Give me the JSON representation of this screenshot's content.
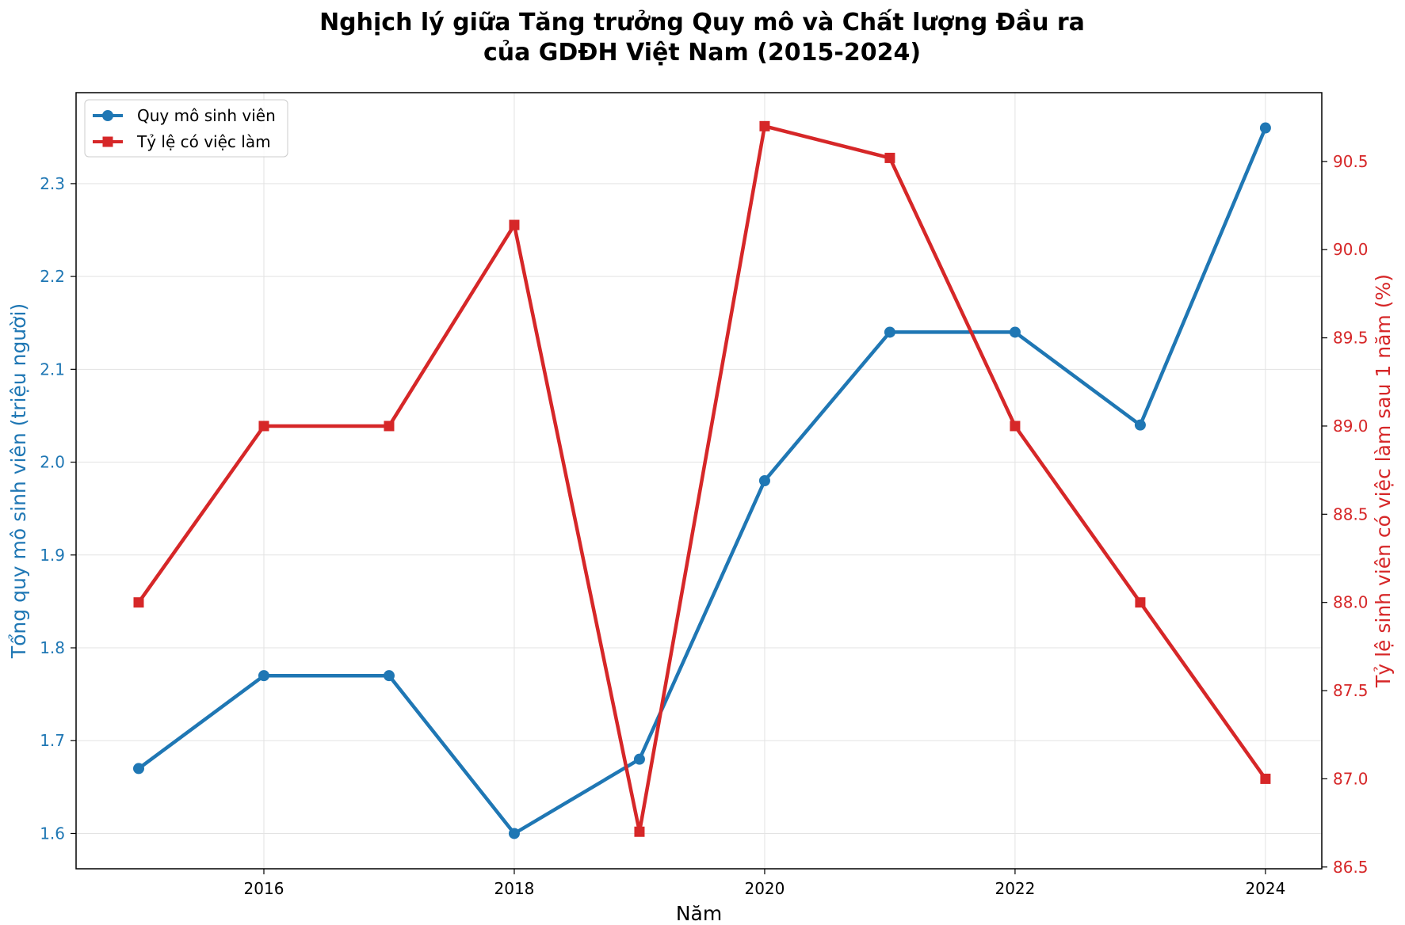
{
  "chart_data": {
    "type": "line",
    "title_lines": [
      "Nghịch lý giữa Tăng trưởng Quy mô và Chất lượng Đầu ra",
      "của GDĐH Việt Nam (2015-2024)"
    ],
    "xlabel": "Năm",
    "ylabel_left": "Tổng quy mô sinh viên (triệu người)",
    "ylabel_right": "Tỷ lệ sinh viên có việc làm sau 1 năm (%)",
    "x": [
      2015,
      2016,
      2017,
      2018,
      2019,
      2020,
      2021,
      2022,
      2023,
      2024
    ],
    "xlim": [
      2014.5,
      2024.45
    ],
    "x_ticks": [
      2016,
      2018,
      2020,
      2022,
      2024
    ],
    "x_tick_labels": [
      "2016",
      "2018",
      "2020",
      "2022",
      "2024"
    ],
    "ylim_left": [
      1.562,
      2.398
    ],
    "y_ticks_left": [
      1.6,
      1.7,
      1.8,
      1.9,
      2.0,
      2.1,
      2.2,
      2.3
    ],
    "y_tick_labels_left": [
      "1.6",
      "1.7",
      "1.8",
      "1.9",
      "2.0",
      "2.1",
      "2.2",
      "2.3"
    ],
    "ylim_right": [
      86.49,
      90.89
    ],
    "y_ticks_right": [
      86.5,
      87.0,
      87.5,
      88.0,
      88.5,
      89.0,
      89.5,
      90.0,
      90.5
    ],
    "y_tick_labels_right": [
      "86.5",
      "87.0",
      "87.5",
      "88.0",
      "88.5",
      "89.0",
      "89.5",
      "90.0",
      "90.5"
    ],
    "grid": true,
    "legend_position": "top-left",
    "series": [
      {
        "name": "Quy mô sinh viên",
        "axis": "left",
        "color": "#1f77b4",
        "marker": "circle",
        "values": [
          1.67,
          1.77,
          1.77,
          1.6,
          1.68,
          1.98,
          2.14,
          2.14,
          2.04,
          2.36
        ]
      },
      {
        "name": "Tỷ lệ có việc làm",
        "axis": "right",
        "color": "#d62728",
        "marker": "square",
        "values": [
          88.0,
          89.0,
          89.0,
          90.14,
          86.7,
          90.7,
          90.52,
          89.0,
          88.0,
          87.0
        ]
      }
    ]
  }
}
